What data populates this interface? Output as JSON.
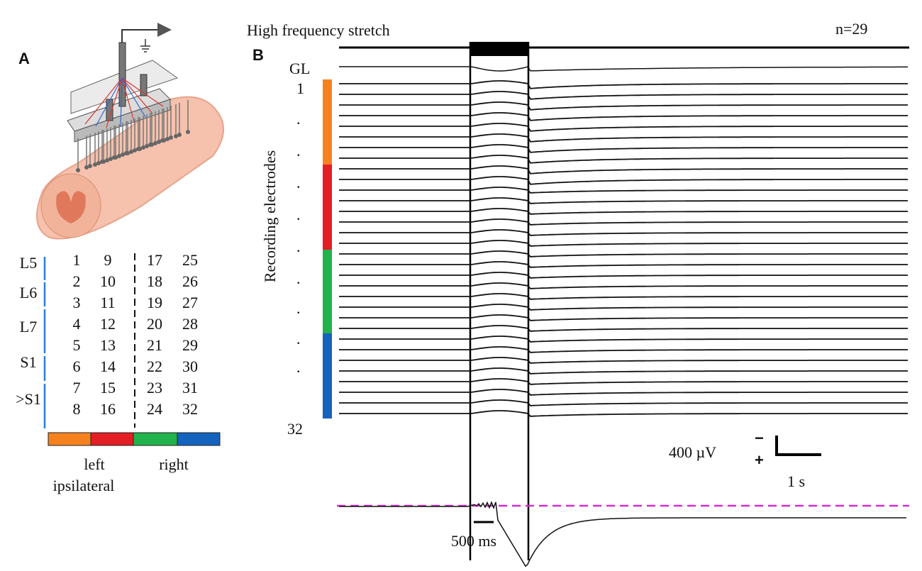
{
  "panel_a": {
    "label": "A",
    "segments": [
      "L5",
      "L6",
      "L7",
      "S1",
      ">S1"
    ],
    "electrode_rows": [
      [
        1,
        9,
        17,
        25
      ],
      [
        2,
        10,
        18,
        26
      ],
      [
        3,
        11,
        19,
        27
      ],
      [
        4,
        12,
        20,
        28
      ],
      [
        5,
        13,
        21,
        29
      ],
      [
        6,
        14,
        22,
        30
      ],
      [
        7,
        15,
        23,
        31
      ],
      [
        8,
        16,
        24,
        32
      ]
    ],
    "left": "left",
    "ipsilateral": "ipsilateral",
    "right": "right"
  },
  "panel_b": {
    "label": "B",
    "title": "High frequency stretch",
    "n": "n=29",
    "gl": "GL",
    "first_electrode": "1",
    "last_electrode": "32",
    "dot": ".",
    "axis_label": "Recording electrodes",
    "scale_voltage": "400 µV",
    "scale_minus": "−",
    "scale_plus": "+",
    "scale_time": "1 s",
    "inset_time": "500 ms"
  }
}
